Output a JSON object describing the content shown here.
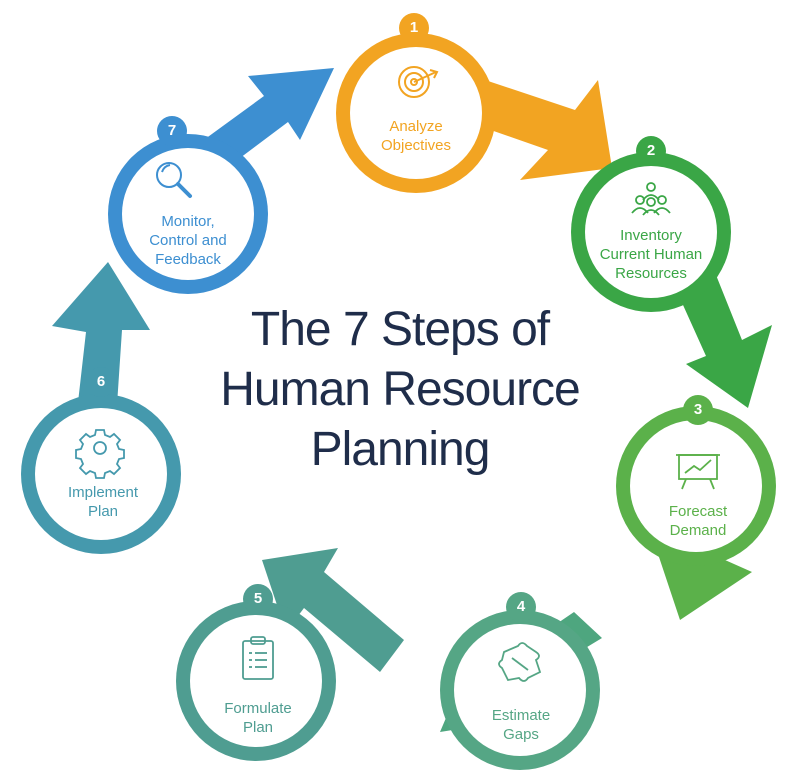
{
  "title": {
    "line1": "The 7 Steps of",
    "line2": "Human Resource",
    "line3": "Planning"
  },
  "steps": [
    {
      "number": "1",
      "label_lines": [
        "Analyze",
        "Objectives"
      ],
      "icon": "target-icon",
      "color": "#f2a422"
    },
    {
      "number": "2",
      "label_lines": [
        "Inventory",
        "Current Human",
        "Resources"
      ],
      "icon": "team-icon",
      "color": "#3aa646"
    },
    {
      "number": "3",
      "label_lines": [
        "Forecast",
        "Demand"
      ],
      "icon": "chart-board-icon",
      "color": "#5bb14a"
    },
    {
      "number": "4",
      "label_lines": [
        "Estimate",
        "Gaps"
      ],
      "icon": "puzzle-icon",
      "color": "#55a685"
    },
    {
      "number": "5",
      "label_lines": [
        "Formulate",
        "Plan"
      ],
      "icon": "clipboard-icon",
      "color": "#4f9d91"
    },
    {
      "number": "6",
      "label_lines": [
        "Implement",
        "Plan"
      ],
      "icon": "gear-icon",
      "color": "#4599ad"
    },
    {
      "number": "7",
      "label_lines": [
        "Monitor,",
        "Control and",
        "Feedback"
      ],
      "icon": "search-icon",
      "color": "#3d8fd1"
    }
  ]
}
